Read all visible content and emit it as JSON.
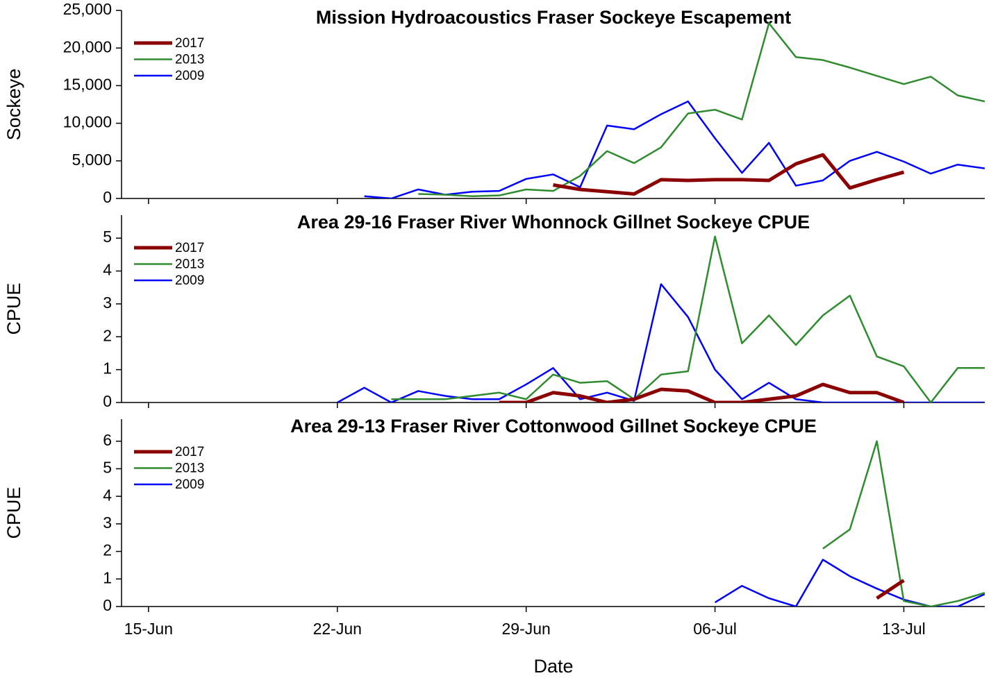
{
  "chart_data": [
    {
      "type": "line",
      "title": "Mission Hydroacoustics Fraser Sockeye Escapement",
      "ylabel": "Sockeye",
      "xlim": [
        "14-Jun",
        "16-Jul"
      ],
      "xticks": [
        "15-Jun",
        "22-Jun",
        "29-Jun",
        "06-Jul",
        "13-Jul"
      ],
      "ylim": [
        0,
        25000
      ],
      "yticks": [
        0,
        {
          "value": 5000,
          "label": "5,000"
        },
        {
          "value": 10000,
          "label": "10,000"
        },
        {
          "value": 15000,
          "label": "15,000"
        },
        {
          "value": 20000,
          "label": "20,000"
        },
        {
          "value": 25000,
          "label": "25,000"
        }
      ],
      "legend": "upper left",
      "series": [
        {
          "name": "2017",
          "color": "#8b0000",
          "linewidth": 5,
          "x": [
            "30-Jun",
            "01-Jul",
            "02-Jul",
            "03-Jul",
            "04-Jul",
            "05-Jul",
            "06-Jul",
            "07-Jul",
            "08-Jul",
            "09-Jul",
            "10-Jul",
            "11-Jul",
            "12-Jul",
            "13-Jul"
          ],
          "values": [
            1800,
            1200,
            900,
            600,
            2500,
            2400,
            2500,
            2500,
            2400,
            4600,
            5800,
            1400,
            2500,
            3500
          ]
        },
        {
          "name": "2013",
          "color": "#2e8b2e",
          "linewidth": 2.5,
          "x": [
            "25-Jun",
            "26-Jun",
            "27-Jun",
            "28-Jun",
            "29-Jun",
            "30-Jun",
            "01-Jul",
            "02-Jul",
            "03-Jul",
            "04-Jul",
            "05-Jul",
            "06-Jul",
            "07-Jul",
            "08-Jul",
            "09-Jul",
            "10-Jul",
            "11-Jul",
            "12-Jul",
            "13-Jul",
            "14-Jul",
            "15-Jul",
            "16-Jul"
          ],
          "values": [
            600,
            500,
            300,
            400,
            1200,
            1000,
            3000,
            6300,
            4700,
            6800,
            11300,
            11800,
            10500,
            23300,
            18800,
            18400,
            17400,
            16300,
            15200,
            16200,
            13700,
            12900
          ]
        },
        {
          "name": "2009",
          "color": "#0000ff",
          "linewidth": 2.5,
          "x": [
            "23-Jun",
            "24-Jun",
            "25-Jun",
            "26-Jun",
            "27-Jun",
            "28-Jun",
            "29-Jun",
            "30-Jun",
            "01-Jul",
            "02-Jul",
            "03-Jul",
            "04-Jul",
            "05-Jul",
            "06-Jul",
            "07-Jul",
            "08-Jul",
            "09-Jul",
            "10-Jul",
            "11-Jul",
            "12-Jul",
            "13-Jul",
            "14-Jul",
            "15-Jul",
            "16-Jul"
          ],
          "values": [
            300,
            0,
            1200,
            500,
            900,
            1000,
            2600,
            3200,
            1500,
            9700,
            9200,
            11200,
            12900,
            8000,
            3400,
            7400,
            1700,
            2400,
            5000,
            6200,
            4900,
            3300,
            4500,
            4000
          ]
        }
      ]
    },
    {
      "type": "line",
      "title": "Area 29-16  Fraser River Whonnock Gillnet Sockeye CPUE",
      "ylabel": "CPUE",
      "xlim": [
        "14-Jun",
        "16-Jul"
      ],
      "xticks": [
        "15-Jun",
        "22-Jun",
        "29-Jun",
        "06-Jul",
        "13-Jul"
      ],
      "ylim": [
        0,
        5.7
      ],
      "yticks": [
        0,
        1,
        2,
        3,
        4,
        5
      ],
      "legend": "upper left",
      "series": [
        {
          "name": "2017",
          "color": "#8b0000",
          "linewidth": 5,
          "x": [
            "28-Jun",
            "29-Jun",
            "30-Jun",
            "01-Jul",
            "02-Jul",
            "03-Jul",
            "04-Jul",
            "05-Jul",
            "06-Jul",
            "07-Jul",
            "08-Jul",
            "09-Jul",
            "10-Jul",
            "11-Jul",
            "12-Jul",
            "13-Jul"
          ],
          "values": [
            0,
            0,
            0.3,
            0.2,
            0,
            0.1,
            0.4,
            0.35,
            0,
            0,
            0.1,
            0.2,
            0.55,
            0.3,
            0.3,
            0
          ]
        },
        {
          "name": "2013",
          "color": "#2e8b2e",
          "linewidth": 2.5,
          "x": [
            "24-Jun",
            "25-Jun",
            "26-Jun",
            "27-Jun",
            "28-Jun",
            "29-Jun",
            "30-Jun",
            "01-Jul",
            "02-Jul",
            "03-Jul",
            "04-Jul",
            "05-Jul",
            "06-Jul",
            "07-Jul",
            "08-Jul",
            "09-Jul",
            "10-Jul",
            "11-Jul",
            "12-Jul",
            "13-Jul",
            "14-Jul",
            "15-Jul",
            "16-Jul"
          ],
          "values": [
            0.1,
            0.1,
            0.1,
            0.2,
            0.3,
            0.1,
            0.85,
            0.6,
            0.65,
            0.1,
            0.85,
            0.95,
            5.05,
            1.8,
            2.65,
            1.75,
            2.65,
            3.25,
            1.4,
            1.1,
            0,
            1.05,
            1.05
          ]
        },
        {
          "name": "2009",
          "color": "#0000ff",
          "linewidth": 2.5,
          "x": [
            "22-Jun",
            "23-Jun",
            "24-Jun",
            "25-Jun",
            "26-Jun",
            "27-Jun",
            "28-Jun",
            "29-Jun",
            "30-Jun",
            "01-Jul",
            "02-Jul",
            "03-Jul",
            "04-Jul",
            "05-Jul",
            "06-Jul",
            "07-Jul",
            "08-Jul",
            "09-Jul",
            "10-Jul",
            "11-Jul",
            "12-Jul",
            "13-Jul",
            "14-Jul",
            "15-Jul",
            "16-Jul"
          ],
          "values": [
            0,
            0.45,
            0,
            0.35,
            0.2,
            0.1,
            0.1,
            0.55,
            1.05,
            0.1,
            0.3,
            0.05,
            3.6,
            2.6,
            1.0,
            0.1,
            0.6,
            0.1,
            0,
            0,
            0,
            0,
            0,
            0,
            0
          ]
        }
      ]
    },
    {
      "type": "line",
      "title": "Area 29-13  Fraser River Cottonwood Gillnet Sockeye CPUE",
      "ylabel": "CPUE",
      "xlabel": "Date",
      "xlim": [
        "14-Jun",
        "16-Jul"
      ],
      "xticks": [
        "15-Jun",
        "22-Jun",
        "29-Jun",
        "06-Jul",
        "13-Jul"
      ],
      "ylim": [
        0,
        6.8
      ],
      "yticks": [
        0,
        1,
        2,
        3,
        4,
        5,
        6
      ],
      "legend": "upper left",
      "series": [
        {
          "name": "2017",
          "color": "#8b0000",
          "linewidth": 5,
          "x": [
            "12-Jul",
            "13-Jul"
          ],
          "values": [
            0.3,
            0.95
          ]
        },
        {
          "name": "2013",
          "color": "#2e8b2e",
          "linewidth": 2.5,
          "x": [
            "10-Jul",
            "11-Jul",
            "12-Jul",
            "13-Jul",
            "14-Jul",
            "15-Jul",
            "16-Jul"
          ],
          "values": [
            2.1,
            2.8,
            6.0,
            0.2,
            0,
            0.2,
            0.5
          ]
        },
        {
          "name": "2009",
          "color": "#0000ff",
          "linewidth": 2.5,
          "x": [
            "06-Jul",
            "07-Jul",
            "08-Jul",
            "09-Jul",
            "10-Jul",
            "11-Jul",
            "12-Jul",
            "13-Jul",
            "14-Jul",
            "15-Jul",
            "16-Jul"
          ],
          "values": [
            0.15,
            0.75,
            0.3,
            0,
            1.7,
            1.1,
            0.65,
            0.25,
            0,
            0,
            0.45
          ]
        }
      ]
    }
  ]
}
